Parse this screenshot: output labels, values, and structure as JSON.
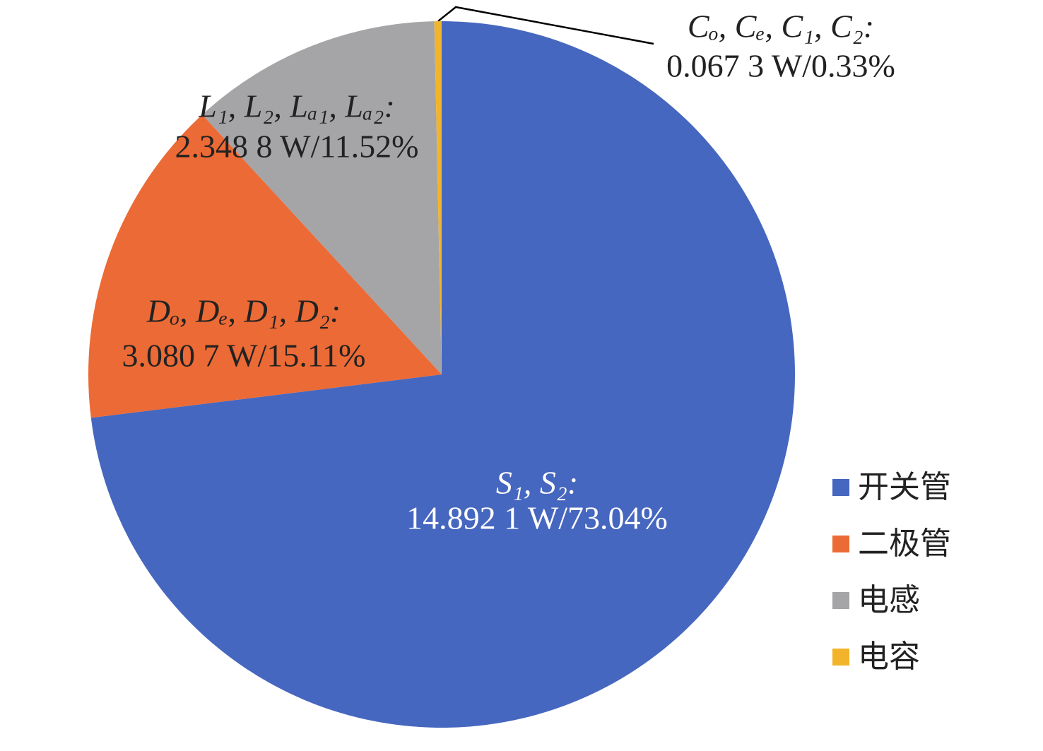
{
  "chart_data": {
    "type": "pie",
    "categories": [
      "开关管",
      "二极管",
      "电感",
      "电容"
    ],
    "values": [
      73.04,
      15.11,
      11.52,
      0.33
    ],
    "label_names": [
      "S₁, S₂:",
      "Dₒ, Dₑ, D₁, D₂:",
      "L₁, L₂, Lₐ₁, Lₐ₂:",
      "Cₒ, Cₑ, C₁, C₂:"
    ],
    "value_labels": [
      "14.892 1 W/73.04%",
      "3.080 7 W/15.11%",
      "2.348 8 W/11.52%",
      "0.067 3 W/0.33%"
    ],
    "colors": [
      "#4667bf",
      "#ec6a35",
      "#a5a5a8",
      "#f2b42a"
    ],
    "legend": "right"
  }
}
